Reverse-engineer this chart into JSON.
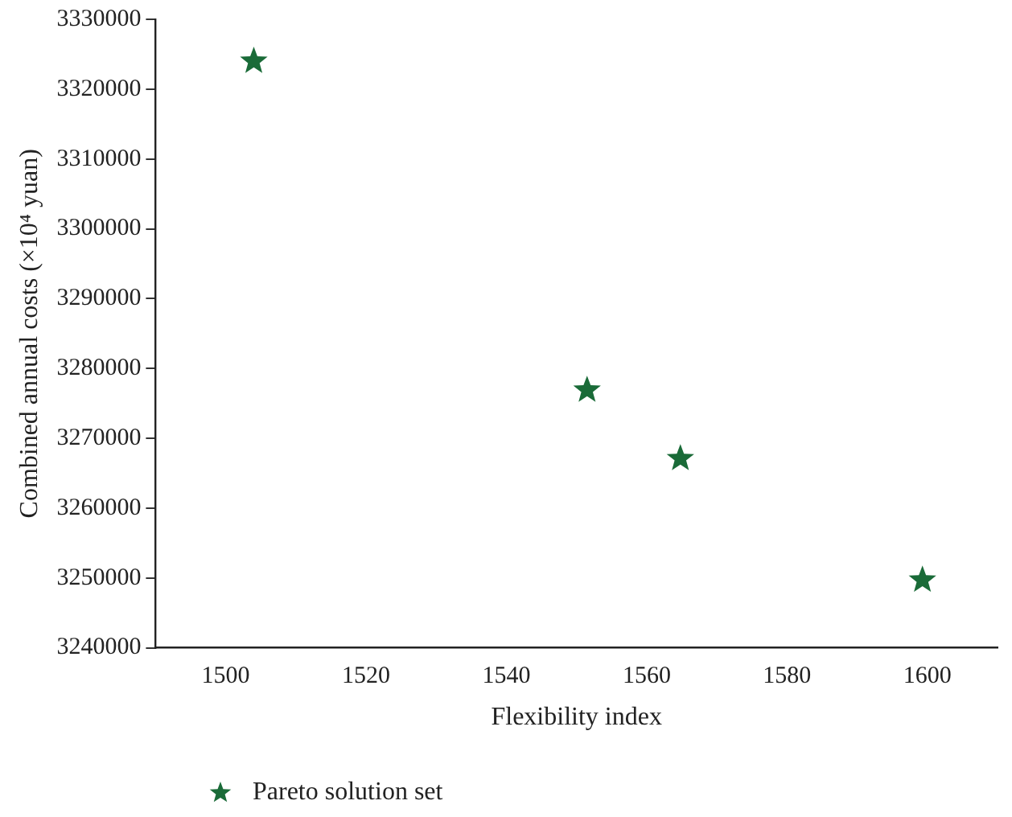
{
  "chart_data": {
    "type": "scatter",
    "xlabel": "Flexibility index",
    "ylabel": "Combined annual costs (×10⁴ yuan)",
    "series": [
      {
        "name": "Pareto solution set",
        "color": "#1a6b38",
        "x": [
          1504,
          1551.5,
          1564.8,
          1599.3
        ],
        "values": [
          3324000,
          3276900,
          3267100,
          3249700
        ]
      }
    ],
    "xlim": [
      1490,
      1610
    ],
    "xticks": [
      1500,
      1520,
      1540,
      1560,
      1580,
      1600
    ],
    "ylim": [
      3240000,
      3330000
    ],
    "yticks": [
      3240000,
      3250000,
      3260000,
      3270000,
      3280000,
      3290000,
      3300000,
      3310000,
      3320000,
      3330000
    ],
    "marker": "star",
    "legend": "bottom left",
    "grid": false
  }
}
